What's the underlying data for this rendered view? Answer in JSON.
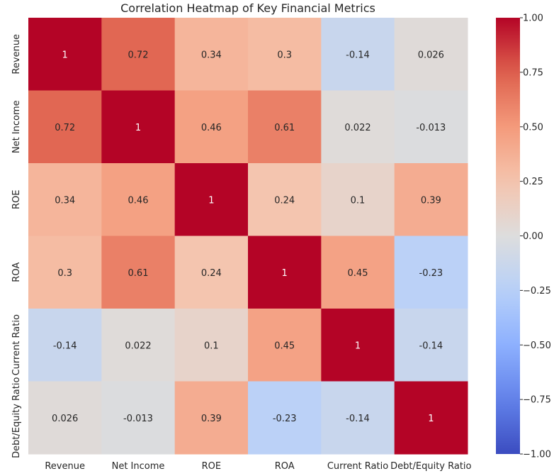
{
  "chart_data": {
    "type": "heatmap",
    "title": "Correlation Heatmap of Key Financial Metrics",
    "xlabel": "",
    "ylabel": "",
    "x_categories": [
      "Revenue",
      "Net Income",
      "ROE",
      "ROA",
      "Current Ratio",
      "Debt/Equity Ratio"
    ],
    "y_categories": [
      "Revenue",
      "Net Income",
      "ROE",
      "ROA",
      "Current Ratio",
      "Debt/Equity Ratio"
    ],
    "values": [
      [
        1,
        0.72,
        0.34,
        0.3,
        -0.14,
        0.026
      ],
      [
        0.72,
        1,
        0.46,
        0.61,
        0.022,
        -0.013
      ],
      [
        0.34,
        0.46,
        1,
        0.24,
        0.1,
        0.39
      ],
      [
        0.3,
        0.61,
        0.24,
        1,
        0.45,
        -0.23
      ],
      [
        -0.14,
        0.022,
        0.1,
        0.45,
        1,
        -0.14
      ],
      [
        0.026,
        -0.013,
        0.39,
        -0.23,
        -0.14,
        1
      ]
    ],
    "cell_labels": [
      [
        "1",
        "0.72",
        "0.34",
        "0.3",
        "-0.14",
        "0.026"
      ],
      [
        "0.72",
        "1",
        "0.46",
        "0.61",
        "0.022",
        "-0.013"
      ],
      [
        "0.34",
        "0.46",
        "1",
        "0.24",
        "0.1",
        "0.39"
      ],
      [
        "0.3",
        "0.61",
        "0.24",
        "1",
        "0.45",
        "-0.23"
      ],
      [
        "-0.14",
        "0.022",
        "0.1",
        "0.45",
        "1",
        "-0.14"
      ],
      [
        "0.026",
        "-0.013",
        "0.39",
        "-0.23",
        "-0.14",
        "1"
      ]
    ],
    "colormap": "coolwarm",
    "vmin": -1,
    "vmax": 1,
    "colorbar": {
      "ticks": [
        1.0,
        0.75,
        0.5,
        0.25,
        0.0,
        -0.25,
        -0.5,
        -0.75,
        -1.0
      ],
      "tick_labels": [
        "1.00",
        "0.75",
        "0.50",
        "0.25",
        "0.00",
        "−0.25",
        "−0.50",
        "−0.75",
        "−1.00"
      ]
    }
  }
}
